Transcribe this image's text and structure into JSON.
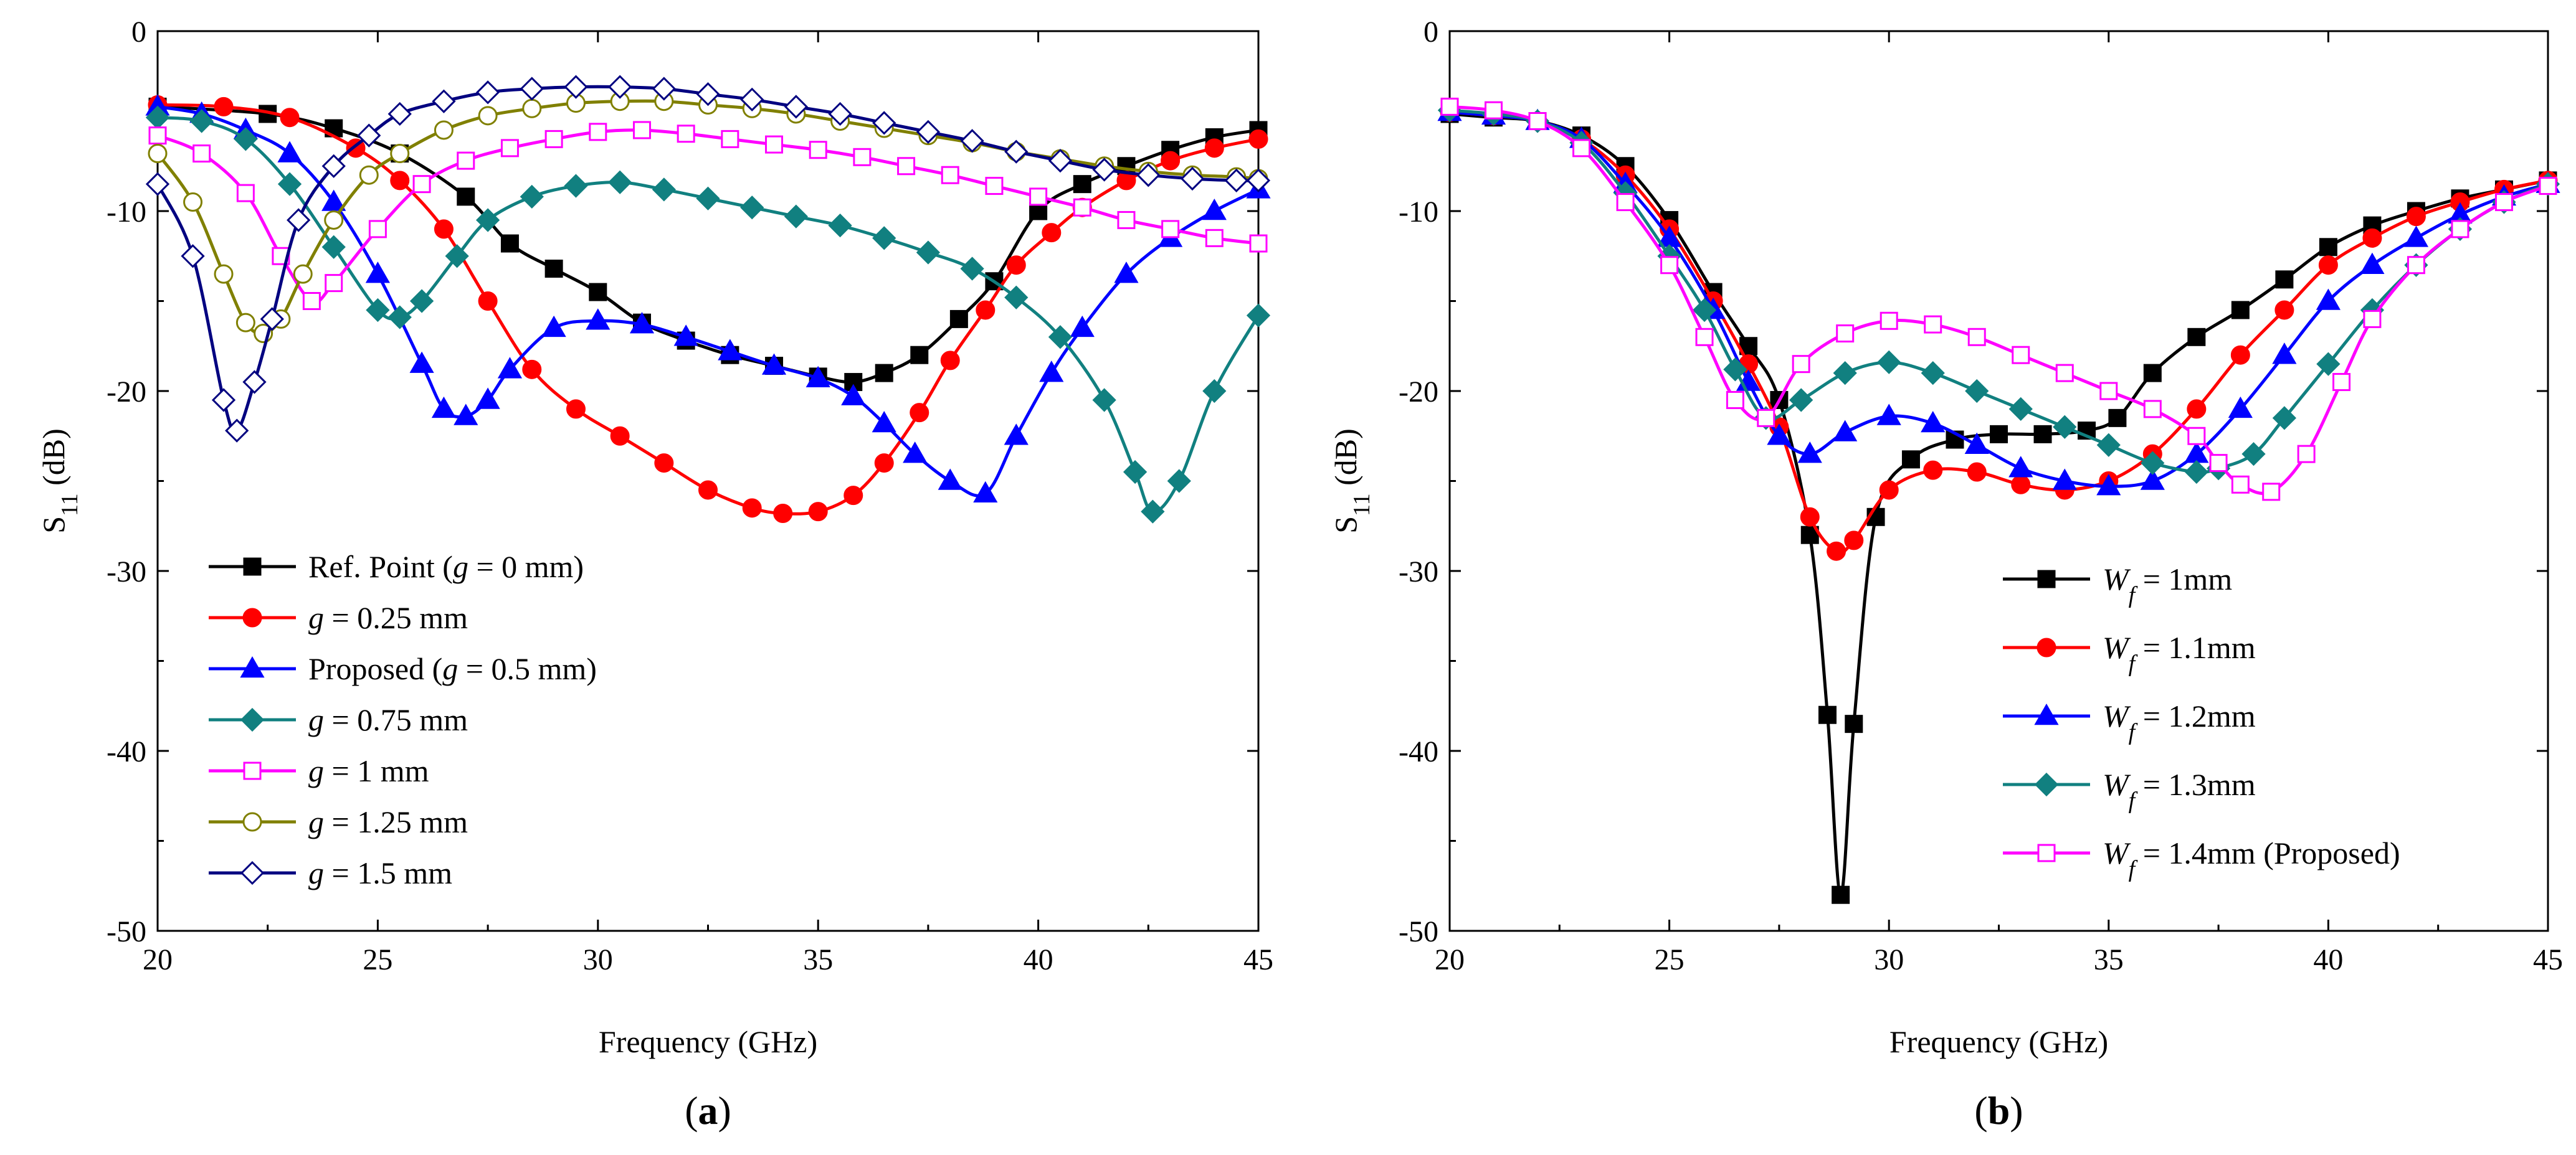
{
  "chart_data": [
    {
      "type": "line",
      "panel_label": "(a)",
      "xlabel": "Frequency (GHz)",
      "ylabel": "S11 (dB)",
      "ylabel_main": "S",
      "ylabel_sub": "11",
      "ylabel_rest": " (dB)",
      "xlim": [
        20,
        45
      ],
      "ylim": [
        -50,
        0
      ],
      "xticks": [
        20,
        25,
        30,
        35,
        40,
        45
      ],
      "yticks": [
        0,
        -10,
        -20,
        -30,
        -40,
        -50
      ],
      "legend_position": "bottom-left",
      "series": [
        {
          "name": "Ref. Point (g = 0 mm)",
          "label_parts": [
            [
              "Ref. Point (",
              ""
            ],
            [
              "g",
              "it"
            ],
            [
              " = 0 mm)",
              ""
            ]
          ],
          "color": "#000000",
          "marker": "square",
          "filled": true,
          "x": [
            20,
            22.5,
            24,
            25.5,
            27,
            28,
            29,
            30,
            31,
            32,
            33,
            34,
            35,
            35.8,
            36.5,
            37.3,
            38.2,
            39,
            40,
            41,
            42,
            43,
            44,
            45
          ],
          "y": [
            -4.2,
            -4.6,
            -5.4,
            -6.8,
            -9.2,
            -11.8,
            -13.2,
            -14.5,
            -16.2,
            -17.2,
            -18,
            -18.6,
            -19.2,
            -19.5,
            -19.0,
            -18.0,
            -16.0,
            -13.9,
            -10.0,
            -8.5,
            -7.5,
            -6.6,
            -5.9,
            -5.5
          ]
        },
        {
          "name": "g = 0.25 mm",
          "label_parts": [
            [
              "g",
              "it"
            ],
            [
              " = 0.25 mm",
              ""
            ]
          ],
          "color": "#ff0000",
          "marker": "circle",
          "filled": true,
          "x": [
            20,
            21.5,
            23,
            24.5,
            25.5,
            26.5,
            27.5,
            28.5,
            29.5,
            30.5,
            31.5,
            32.5,
            33.5,
            34.2,
            35,
            35.8,
            36.5,
            37.3,
            38,
            38.8,
            39.5,
            40.3,
            41,
            42,
            43,
            44,
            45
          ],
          "y": [
            -4.1,
            -4.2,
            -4.8,
            -6.5,
            -8.3,
            -11,
            -15,
            -18.8,
            -21,
            -22.5,
            -24,
            -25.5,
            -26.5,
            -26.8,
            -26.7,
            -25.8,
            -24.0,
            -21.2,
            -18.3,
            -15.5,
            -13.0,
            -11.2,
            -9.8,
            -8.3,
            -7.2,
            -6.5,
            -6.0
          ]
        },
        {
          "name": "Proposed (g = 0.5 mm)",
          "label_parts": [
            [
              "Proposed (",
              ""
            ],
            [
              "g",
              "it"
            ],
            [
              " = 0.5 mm)",
              ""
            ]
          ],
          "color": "#0000ff",
          "marker": "triangle",
          "filled": true,
          "x": [
            20,
            21,
            22,
            23,
            24,
            25,
            26,
            26.5,
            27,
            27.5,
            28,
            29,
            30,
            31,
            32,
            33,
            34,
            35,
            35.8,
            36.5,
            37.2,
            38,
            38.8,
            39.5,
            40.3,
            41,
            42,
            43,
            44,
            45
          ],
          "y": [
            -4.2,
            -4.6,
            -5.5,
            -6.8,
            -9.5,
            -13.5,
            -18.5,
            -21.0,
            -21.4,
            -20.5,
            -18.8,
            -16.5,
            -16.1,
            -16.3,
            -17.0,
            -17.8,
            -18.6,
            -19.3,
            -20.3,
            -21.8,
            -23.5,
            -25.0,
            -25.7,
            -22.5,
            -19.0,
            -16.5,
            -13.5,
            -11.5,
            -10.0,
            -8.8
          ]
        },
        {
          "name": "g = 0.75 mm",
          "label_parts": [
            [
              "g",
              "it"
            ],
            [
              " = 0.75 mm",
              ""
            ]
          ],
          "color": "#118080",
          "marker": "diamond",
          "filled": true,
          "x": [
            20,
            21,
            22,
            23,
            24,
            25,
            25.5,
            26,
            26.8,
            27.5,
            28.5,
            29.5,
            30.5,
            31.5,
            32.5,
            33.5,
            34.5,
            35.5,
            36.5,
            37.5,
            38.5,
            39.5,
            40.5,
            41.5,
            42.2,
            42.6,
            43.2,
            44,
            45
          ],
          "y": [
            -4.8,
            -5.0,
            -6.0,
            -8.5,
            -12.0,
            -15.5,
            -15.9,
            -15.0,
            -12.5,
            -10.5,
            -9.2,
            -8.6,
            -8.4,
            -8.8,
            -9.3,
            -9.8,
            -10.3,
            -10.8,
            -11.5,
            -12.3,
            -13.2,
            -14.8,
            -17.0,
            -20.5,
            -24.5,
            -26.7,
            -25.0,
            -20.0,
            -15.8
          ]
        },
        {
          "name": "g = 1 mm",
          "label_parts": [
            [
              "g",
              "it"
            ],
            [
              " = 1 mm",
              ""
            ]
          ],
          "color": "#ff00ff",
          "marker": "square",
          "filled": false,
          "x": [
            20,
            21,
            22,
            22.8,
            23.5,
            24,
            25,
            26,
            27,
            28,
            29,
            30,
            31,
            32,
            33,
            34,
            35,
            36,
            37,
            38,
            39,
            40,
            41,
            42,
            43,
            44,
            45
          ],
          "y": [
            -5.8,
            -6.8,
            -9.0,
            -12.5,
            -15.0,
            -14.0,
            -11.0,
            -8.5,
            -7.2,
            -6.5,
            -6.0,
            -5.6,
            -5.5,
            -5.7,
            -6.0,
            -6.3,
            -6.6,
            -7.0,
            -7.5,
            -8.0,
            -8.6,
            -9.2,
            -9.8,
            -10.5,
            -11.0,
            -11.5,
            -11.8
          ]
        },
        {
          "name": "g = 1.25 mm",
          "label_parts": [
            [
              "g",
              "it"
            ],
            [
              " = 1.25 mm",
              ""
            ]
          ],
          "color": "#808000",
          "marker": "circle",
          "filled": false,
          "x": [
            20,
            20.8,
            21.5,
            22,
            22.4,
            22.8,
            23.3,
            24,
            24.8,
            25.5,
            26.5,
            27.5,
            28.5,
            29.5,
            30.5,
            31.5,
            32.5,
            33.5,
            34.5,
            35.5,
            36.5,
            37.5,
            38.5,
            39.5,
            40.5,
            41.5,
            42.5,
            43.5,
            44.5,
            45
          ],
          "y": [
            -6.8,
            -9.5,
            -13.5,
            -16.2,
            -16.8,
            -16.0,
            -13.5,
            -10.5,
            -8.0,
            -6.8,
            -5.5,
            -4.7,
            -4.3,
            -4.0,
            -3.9,
            -3.9,
            -4.1,
            -4.3,
            -4.6,
            -5.0,
            -5.4,
            -5.8,
            -6.2,
            -6.7,
            -7.1,
            -7.5,
            -7.8,
            -8.0,
            -8.1,
            -8.2
          ]
        },
        {
          "name": "g = 1.5 mm",
          "label_parts": [
            [
              "g",
              "it"
            ],
            [
              " = 1.5 mm",
              ""
            ]
          ],
          "color": "#000080",
          "marker": "diamond",
          "filled": false,
          "x": [
            20,
            20.8,
            21.5,
            21.8,
            22.2,
            22.6,
            23.2,
            24,
            24.8,
            25.5,
            26.5,
            27.5,
            28.5,
            29.5,
            30.5,
            31.5,
            32.5,
            33.5,
            34.5,
            35.5,
            36.5,
            37.5,
            38.5,
            39.5,
            40.5,
            41.5,
            42.5,
            43.5,
            44.5,
            45
          ],
          "y": [
            -8.5,
            -12.5,
            -20.5,
            -22.2,
            -19.5,
            -16.0,
            -10.5,
            -7.5,
            -5.8,
            -4.6,
            -3.9,
            -3.4,
            -3.2,
            -3.1,
            -3.1,
            -3.2,
            -3.5,
            -3.8,
            -4.2,
            -4.6,
            -5.1,
            -5.6,
            -6.1,
            -6.7,
            -7.2,
            -7.7,
            -8.0,
            -8.2,
            -8.3,
            -8.3
          ]
        }
      ]
    },
    {
      "type": "line",
      "panel_label": "(b)",
      "xlabel": "Frequency (GHz)",
      "ylabel": "S11 (dB)",
      "ylabel_main": "S",
      "ylabel_sub": "11",
      "ylabel_rest": " (dB)",
      "xlim": [
        20,
        45
      ],
      "ylim": [
        -50,
        0
      ],
      "xticks": [
        20,
        25,
        30,
        35,
        40,
        45
      ],
      "yticks": [
        0,
        -10,
        -20,
        -30,
        -40,
        -50
      ],
      "legend_position": "bottom-right",
      "series": [
        {
          "name": "Wf = 1mm",
          "label_parts": [
            [
              "W",
              "it"
            ],
            [
              "f",
              "it-sub"
            ],
            [
              " = 1mm",
              ""
            ]
          ],
          "color": "#000000",
          "marker": "square",
          "filled": true,
          "x": [
            20,
            21,
            22,
            23,
            24,
            25,
            26,
            26.8,
            27.5,
            28.2,
            28.6,
            28.9,
            29.2,
            29.7,
            30.5,
            31.5,
            32.5,
            33.5,
            34.5,
            35.2,
            36,
            37,
            38,
            39,
            40,
            41,
            42,
            43,
            44,
            45
          ],
          "y": [
            -4.6,
            -4.8,
            -5.0,
            -5.8,
            -7.5,
            -10.5,
            -14.5,
            -17.5,
            -20.5,
            -28.0,
            -38.0,
            -48.0,
            -38.5,
            -27.0,
            -23.8,
            -22.7,
            -22.4,
            -22.4,
            -22.2,
            -21.5,
            -19.0,
            -17.0,
            -15.5,
            -13.8,
            -12.0,
            -10.8,
            -10.0,
            -9.3,
            -8.8,
            -8.3
          ]
        },
        {
          "name": "Wf = 1.1mm",
          "label_parts": [
            [
              "W",
              "it"
            ],
            [
              "f",
              "it-sub"
            ],
            [
              " = 1.1mm",
              ""
            ]
          ],
          "color": "#ff0000",
          "marker": "circle",
          "filled": true,
          "x": [
            20,
            21,
            22,
            23,
            24,
            25,
            26,
            26.8,
            27.5,
            28.2,
            28.8,
            29.2,
            30,
            31,
            32,
            33,
            34,
            35,
            36,
            37,
            38,
            39,
            40,
            41,
            42,
            43,
            44,
            45
          ],
          "y": [
            -4.5,
            -4.7,
            -5.0,
            -6.0,
            -8.0,
            -11.0,
            -15.0,
            -18.5,
            -22.0,
            -27.0,
            -28.9,
            -28.3,
            -25.5,
            -24.4,
            -24.5,
            -25.2,
            -25.5,
            -25.0,
            -23.5,
            -21.0,
            -18.0,
            -15.5,
            -13.0,
            -11.5,
            -10.3,
            -9.5,
            -8.8,
            -8.3
          ]
        },
        {
          "name": "Wf = 1.2mm",
          "label_parts": [
            [
              "W",
              "it"
            ],
            [
              "f",
              "it-sub"
            ],
            [
              " = 1.2mm",
              ""
            ]
          ],
          "color": "#0000ff",
          "marker": "triangle",
          "filled": true,
          "x": [
            20,
            21,
            22,
            23,
            24,
            25,
            26,
            26.8,
            27.5,
            28.2,
            29,
            30,
            31,
            32,
            33,
            34,
            35,
            36,
            37,
            38,
            39,
            40,
            41,
            42,
            43,
            44,
            45
          ],
          "y": [
            -4.5,
            -4.7,
            -5.0,
            -6.0,
            -8.5,
            -11.5,
            -15.5,
            -19.5,
            -22.5,
            -23.5,
            -22.3,
            -21.4,
            -21.8,
            -23.0,
            -24.3,
            -25.0,
            -25.3,
            -25.0,
            -23.5,
            -21.0,
            -18.0,
            -15.0,
            -13.0,
            -11.5,
            -10.2,
            -9.2,
            -8.5
          ]
        },
        {
          "name": "Wf = 1.3mm",
          "label_parts": [
            [
              "W",
              "it"
            ],
            [
              "f",
              "it-sub"
            ],
            [
              " = 1.3mm",
              ""
            ]
          ],
          "color": "#118080",
          "marker": "diamond",
          "filled": true,
          "x": [
            20,
            21,
            22,
            23,
            24,
            25,
            25.8,
            26.5,
            27.2,
            28,
            29,
            30,
            31,
            32,
            33,
            34,
            35,
            36,
            37,
            37.5,
            38.3,
            39,
            40,
            41,
            42,
            43,
            44,
            45
          ],
          "y": [
            -4.4,
            -4.6,
            -5.0,
            -6.2,
            -9.0,
            -12.5,
            -15.5,
            -18.8,
            -21.5,
            -20.5,
            -19.0,
            -18.4,
            -19.0,
            -20.0,
            -21.0,
            -22.0,
            -23.0,
            -24.0,
            -24.5,
            -24.3,
            -23.5,
            -21.5,
            -18.5,
            -15.5,
            -13.0,
            -11.0,
            -9.5,
            -8.5
          ]
        },
        {
          "name": "Wf = 1.4mm (Proposed)",
          "label_parts": [
            [
              "W",
              "it"
            ],
            [
              "f",
              "it-sub"
            ],
            [
              " = 1.4mm (Proposed)",
              ""
            ]
          ],
          "color": "#ff00ff",
          "marker": "square",
          "filled": false,
          "x": [
            20,
            21,
            22,
            23,
            24,
            25,
            25.8,
            26.5,
            27.2,
            28,
            29,
            30,
            31,
            32,
            33,
            34,
            35,
            36,
            37,
            37.5,
            38,
            38.7,
            39.5,
            40.3,
            41,
            42,
            43,
            44,
            45
          ],
          "y": [
            -4.2,
            -4.4,
            -5.0,
            -6.5,
            -9.5,
            -13.0,
            -17.0,
            -20.5,
            -21.5,
            -18.5,
            -16.8,
            -16.1,
            -16.3,
            -17.0,
            -18.0,
            -19.0,
            -20.0,
            -21.0,
            -22.5,
            -24.0,
            -25.2,
            -25.6,
            -23.5,
            -19.5,
            -16.0,
            -13.0,
            -11.0,
            -9.5,
            -8.6
          ]
        }
      ]
    }
  ]
}
